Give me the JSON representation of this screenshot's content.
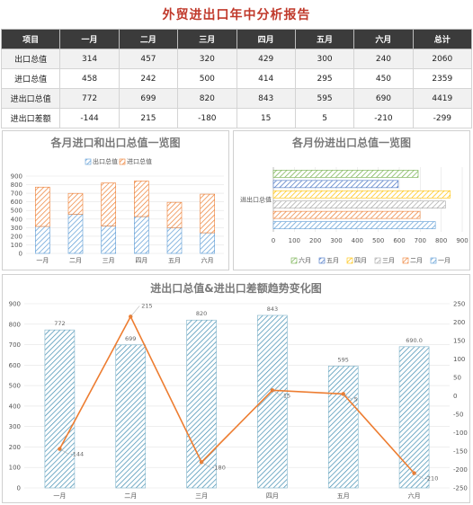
{
  "title": "外贸进出口年中分析报告",
  "table": {
    "headers": [
      "项目",
      "一月",
      "二月",
      "三月",
      "四月",
      "五月",
      "六月",
      "总计"
    ],
    "rows": [
      [
        "出口总值",
        "314",
        "457",
        "320",
        "429",
        "300",
        "240",
        "2060"
      ],
      [
        "进口总值",
        "458",
        "242",
        "500",
        "414",
        "295",
        "450",
        "2359"
      ],
      [
        "进出口总值",
        "772",
        "699",
        "820",
        "843",
        "595",
        "690",
        "4419"
      ],
      [
        "进出口差额",
        "-144",
        "215",
        "-180",
        "15",
        "5",
        "-210",
        "-299"
      ]
    ]
  },
  "colors": {
    "export": "#5b9bd5",
    "import": "#ed7d31",
    "total_bar": "#3d8bb0",
    "line": "#ed7d31",
    "may": "#4472c4",
    "april": "#ffc000",
    "march": "#a5a5a5",
    "june": "#70ad47"
  },
  "chart_data": [
    {
      "type": "bar",
      "subtype": "stacked",
      "title": "各月进口和出口总值一览图",
      "categories": [
        "一月",
        "二月",
        "三月",
        "四月",
        "五月",
        "六月"
      ],
      "series": [
        {
          "name": "出口总值",
          "values": [
            314,
            457,
            320,
            429,
            300,
            240
          ]
        },
        {
          "name": "进口总值",
          "values": [
            458,
            242,
            500,
            414,
            295,
            450
          ]
        }
      ],
      "ylim": [
        0,
        900
      ],
      "yticks": [
        0,
        100,
        200,
        300,
        400,
        500,
        600,
        700,
        800,
        900
      ],
      "legend": "top"
    },
    {
      "type": "bar",
      "subtype": "horizontal",
      "title": "各月份进出口总值一览图",
      "categories": [
        "进出口总值"
      ],
      "series": [
        {
          "name": "一月",
          "values": [
            772
          ]
        },
        {
          "name": "二月",
          "values": [
            699
          ]
        },
        {
          "name": "三月",
          "values": [
            820
          ]
        },
        {
          "name": "四月",
          "values": [
            843
          ]
        },
        {
          "name": "五月",
          "values": [
            595
          ]
        },
        {
          "name": "六月",
          "values": [
            690
          ]
        }
      ],
      "legend_order": [
        "六月",
        "五月",
        "四月",
        "三月",
        "二月",
        "一月"
      ],
      "xlim": [
        0,
        900
      ],
      "xticks": [
        0,
        100,
        200,
        300,
        400,
        500,
        600,
        700,
        800,
        900
      ],
      "legend": "bottom"
    },
    {
      "type": "bar",
      "subtype": "combo-bar-line",
      "title": "进出口总值&进出口差额趋势变化图",
      "categories": [
        "一月",
        "二月",
        "三月",
        "四月",
        "五月",
        "六月"
      ],
      "bars": {
        "name": "进出口总值",
        "values": [
          772,
          699,
          820,
          843,
          595,
          690
        ],
        "labels": [
          "772",
          "699",
          "820",
          "843",
          "595",
          "690.0"
        ]
      },
      "line": {
        "name": "进出口差额",
        "values": [
          -144,
          215,
          -180,
          15,
          5,
          -210
        ],
        "labels": [
          "-144",
          "215",
          "-180",
          "15",
          "5",
          "-210"
        ]
      },
      "ylim": [
        0,
        900
      ],
      "yticks": [
        0,
        100,
        200,
        300,
        400,
        500,
        600,
        700,
        800,
        900
      ],
      "y2lim": [
        -250,
        250
      ],
      "y2ticks": [
        -250,
        -200,
        -150,
        -100,
        -50,
        0,
        50,
        100,
        150,
        200,
        250
      ]
    }
  ]
}
